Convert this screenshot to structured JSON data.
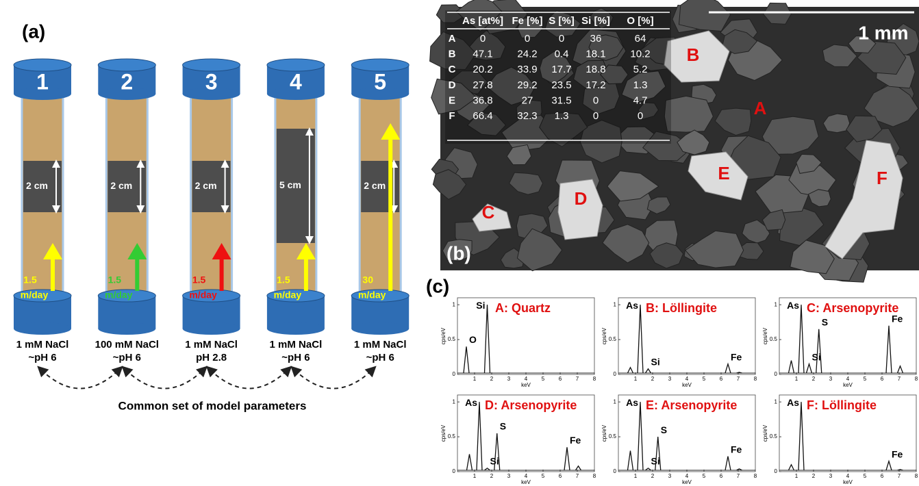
{
  "panel_a": {
    "label": "(a)",
    "columns": [
      {
        "number": "1",
        "zone": "2 cm",
        "flow": "1.5",
        "flow_unit": "m/day",
        "solution": "1 mM NaCl",
        "ph": "~pH 6",
        "arrow_color": "#ffff00"
      },
      {
        "number": "2",
        "zone": "2 cm",
        "flow": "1.5",
        "flow_unit": "m/day",
        "solution": "100 mM NaCl",
        "ph": "~pH 6",
        "arrow_color": "#33cc33"
      },
      {
        "number": "3",
        "zone": "2 cm",
        "flow": "1.5",
        "flow_unit": "m/day",
        "solution": "1 mM NaCl",
        "ph": "pH 2.8",
        "arrow_color": "#ee1111"
      },
      {
        "number": "4",
        "zone": "5 cm",
        "flow": "1.5",
        "flow_unit": "m/day",
        "solution": "1 mM NaCl",
        "ph": "~pH 6",
        "arrow_color": "#ffff00"
      },
      {
        "number": "5",
        "zone": "2 cm",
        "flow": "30",
        "flow_unit": "m/day",
        "solution": "1 mM NaCl",
        "ph": "~pH 6",
        "arrow_color": "#ffff00"
      }
    ],
    "caption": "Common set of model parameters"
  },
  "panel_b": {
    "label": "(b)",
    "scale": "1 mm",
    "table": {
      "header": [
        "As [at%]",
        "Fe [%]",
        "S [%]",
        "Si [%]",
        "O [%]"
      ],
      "rows": [
        [
          "A",
          0,
          0,
          0,
          36,
          64
        ],
        [
          "B",
          47.1,
          24.2,
          0.4,
          18.1,
          10.2
        ],
        [
          "C",
          20.2,
          33.9,
          17.7,
          18.8,
          5.2
        ],
        [
          "D",
          27.8,
          29.2,
          23.5,
          17.2,
          1.3
        ],
        [
          "E",
          36.8,
          27,
          31.5,
          0,
          4.7
        ],
        [
          "F",
          66.4,
          32.3,
          1.3,
          0,
          0
        ]
      ]
    },
    "particles": [
      "A",
      "B",
      "C",
      "D",
      "E",
      "F"
    ]
  },
  "panel_c": {
    "label": "(c)",
    "ylabel": "cps/eV",
    "xlabel": "keV",
    "xlim": [
      0,
      8
    ],
    "ylim": [
      0,
      1.1
    ],
    "xticks": [
      1,
      2,
      3,
      4,
      5,
      6,
      7,
      8
    ],
    "yticks": [
      0,
      0.5,
      1
    ],
    "spectra": [
      {
        "title": "A: Quartz",
        "peaks": [
          {
            "x": 0.52,
            "height": 0.4,
            "label": "O"
          },
          {
            "x": 1.74,
            "height": 1,
            "label": "Si"
          }
        ]
      },
      {
        "title": "B: Löllingite",
        "peaks": [
          {
            "x": 0.7,
            "height": 0.1
          },
          {
            "x": 1.28,
            "height": 1,
            "label": "As"
          },
          {
            "x": 1.74,
            "height": 0.08,
            "label": "Si"
          },
          {
            "x": 6.4,
            "height": 0.15,
            "label": "Fe"
          },
          {
            "x": 7.06,
            "height": 0.03
          }
        ]
      },
      {
        "title": "C: Arsenopyrite",
        "peaks": [
          {
            "x": 0.7,
            "height": 0.2
          },
          {
            "x": 1.28,
            "height": 1,
            "label": "As"
          },
          {
            "x": 1.74,
            "height": 0.15,
            "label": "Si"
          },
          {
            "x": 2.31,
            "height": 0.65,
            "label": "S"
          },
          {
            "x": 6.4,
            "height": 0.7,
            "label": "Fe"
          },
          {
            "x": 7.06,
            "height": 0.12
          }
        ]
      },
      {
        "title": "D: Arsenopyrite",
        "peaks": [
          {
            "x": 0.7,
            "height": 0.25
          },
          {
            "x": 1.28,
            "height": 1,
            "label": "As"
          },
          {
            "x": 1.74,
            "height": 0.05,
            "label": "Si"
          },
          {
            "x": 2.31,
            "height": 0.55,
            "label": "S"
          },
          {
            "x": 6.4,
            "height": 0.35,
            "label": "Fe"
          },
          {
            "x": 7.06,
            "height": 0.08
          }
        ]
      },
      {
        "title": "E: Arsenopyrite",
        "peaks": [
          {
            "x": 0.7,
            "height": 0.3
          },
          {
            "x": 1.28,
            "height": 1,
            "label": "As"
          },
          {
            "x": 1.74,
            "height": 0.05,
            "label": "Si"
          },
          {
            "x": 2.31,
            "height": 0.5,
            "label": "S"
          },
          {
            "x": 6.4,
            "height": 0.22,
            "label": "Fe"
          },
          {
            "x": 7.06,
            "height": 0.04
          }
        ]
      },
      {
        "title": "F: Löllingite",
        "peaks": [
          {
            "x": 0.7,
            "height": 0.1
          },
          {
            "x": 1.28,
            "height": 1,
            "label": "As"
          },
          {
            "x": 6.4,
            "height": 0.15,
            "label": "Fe"
          },
          {
            "x": 7.06,
            "height": 0.03
          }
        ]
      }
    ]
  }
}
